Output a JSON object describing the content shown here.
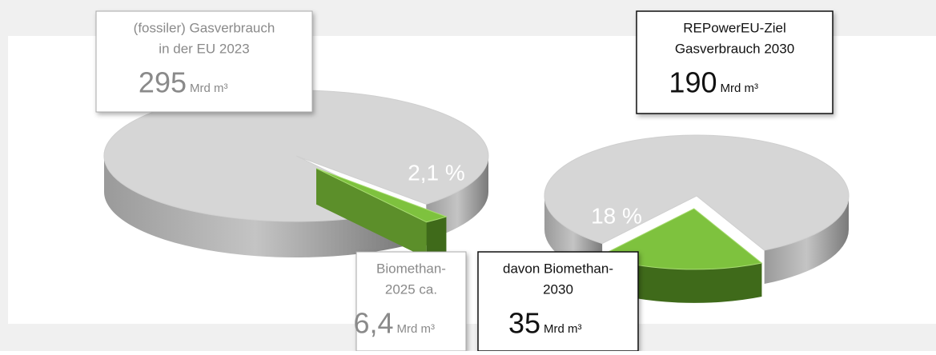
{
  "chart_data": [
    {
      "type": "pie",
      "title_lines": [
        "(fossiler) Gasverbrauch",
        "in der EU 2023"
      ],
      "total": 295,
      "unit": "Mrd m³",
      "values": [
        97.9,
        2.1
      ],
      "value_labels": [
        null,
        "2,1 %"
      ],
      "colors": [
        "#d6d6d6",
        "#7ec23e"
      ],
      "callout_lines": [
        "Biomethan-",
        "2025 ca."
      ],
      "callout_amount": {
        "value": 6.4,
        "label": "6,4"
      },
      "callout_unit": "Mrd m³"
    },
    {
      "type": "pie",
      "title_lines": [
        "REPowerEU-Ziel",
        "Gasverbrauch 2030"
      ],
      "total": 190,
      "unit": "Mrd m³",
      "values": [
        82,
        18
      ],
      "value_labels": [
        null,
        "18 %"
      ],
      "colors": [
        "#d6d6d6",
        "#7ec23e"
      ],
      "callout_lines": [
        "davon Biomethan-",
        "2030"
      ],
      "callout_amount": 35,
      "callout_unit": "Mrd m³"
    }
  ]
}
